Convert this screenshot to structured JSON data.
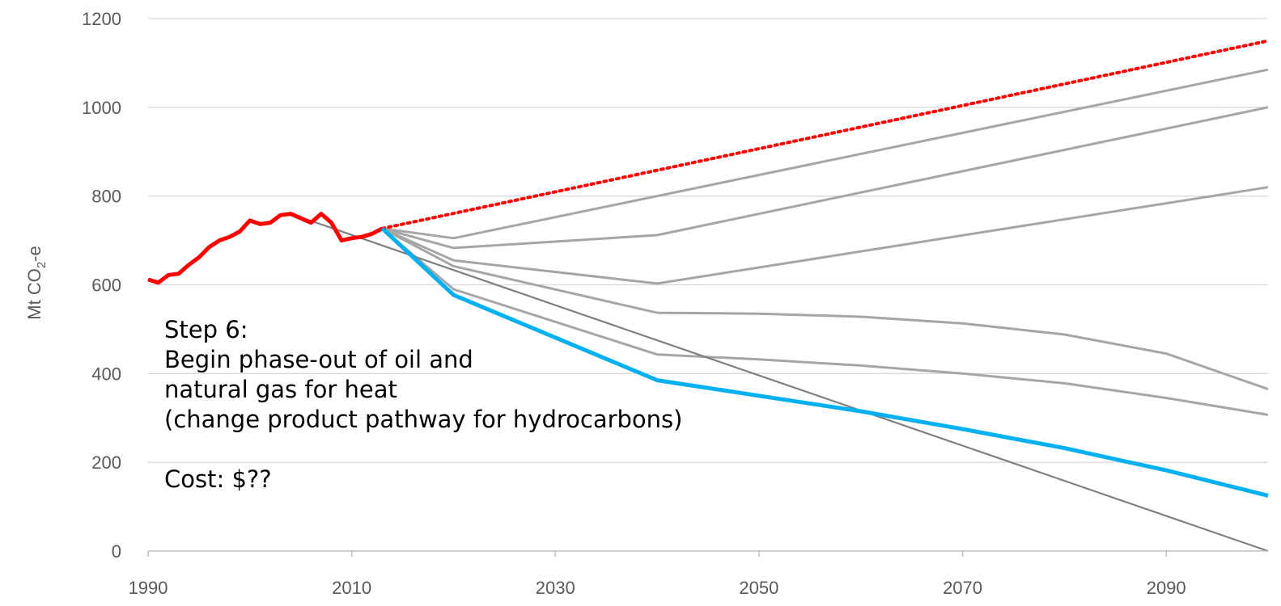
{
  "chart_data": {
    "type": "line",
    "title": "",
    "xlabel": "",
    "ylabel": "Mt CO2-e",
    "ylabel_parts": {
      "main": "Mt CO",
      "sub": "2",
      "suffix": "-e"
    },
    "xlim": [
      1990,
      2100
    ],
    "ylim": [
      0,
      1200
    ],
    "x_ticks": [
      "1990",
      "2010",
      "2030",
      "2050",
      "2070",
      "2090"
    ],
    "y_ticks": [
      "0",
      "200",
      "400",
      "600",
      "800",
      "1000",
      "1200"
    ],
    "grid": {
      "horizontal": true,
      "vertical": false
    },
    "legend": "none",
    "colors": {
      "historical": "#ff0000",
      "business_as_usual": "#ff0000",
      "scenario": "#a6a6a6",
      "target": "#7f7f7f",
      "highlight": "#00b0f0",
      "grid": "#d9d9d9",
      "axis": "#bfbfbf"
    },
    "series": [
      {
        "role": "historical",
        "style": "solid",
        "x": [
          1990,
          1991,
          1992,
          1993,
          1994,
          1995,
          1996,
          1997,
          1998,
          1999,
          2000,
          2001,
          2002,
          2003,
          2004,
          2005,
          2006,
          2007,
          2008,
          2009,
          2010,
          2011,
          2012,
          2013
        ],
        "y": [
          612,
          605,
          622,
          625,
          645,
          662,
          685,
          700,
          708,
          720,
          745,
          737,
          740,
          757,
          760,
          750,
          740,
          760,
          740,
          700,
          705,
          708,
          715,
          727
        ]
      },
      {
        "role": "business_as_usual",
        "style": "dotted",
        "x": [
          2013,
          2100
        ],
        "y": [
          727,
          1150
        ]
      },
      {
        "role": "scenario",
        "style": "solid",
        "x": [
          2013,
          2020,
          2100
        ],
        "y": [
          727,
          705,
          1085
        ]
      },
      {
        "role": "scenario",
        "style": "solid",
        "x": [
          2013,
          2020,
          2040,
          2100
        ],
        "y": [
          727,
          683,
          712,
          1000
        ]
      },
      {
        "role": "scenario",
        "style": "solid",
        "x": [
          2013,
          2020,
          2040,
          2100
        ],
        "y": [
          727,
          655,
          603,
          820
        ]
      },
      {
        "role": "scenario",
        "style": "solid",
        "x": [
          2013,
          2020,
          2040,
          2050,
          2060,
          2070,
          2080,
          2090,
          2100
        ],
        "y": [
          727,
          642,
          537,
          535,
          528,
          513,
          488,
          445,
          365
        ]
      },
      {
        "role": "scenario",
        "style": "solid",
        "x": [
          2013,
          2020,
          2040,
          2050,
          2060,
          2070,
          2080,
          2090,
          2100
        ],
        "y": [
          727,
          590,
          443,
          432,
          418,
          400,
          378,
          345,
          307
        ]
      },
      {
        "role": "target",
        "style": "solid",
        "x": [
          2005,
          2100
        ],
        "y": [
          752,
          0
        ]
      },
      {
        "role": "highlight",
        "style": "solid",
        "x": [
          2013,
          2020,
          2040,
          2050,
          2060,
          2070,
          2080,
          2090,
          2100
        ],
        "y": [
          727,
          577,
          385,
          350,
          315,
          275,
          232,
          182,
          125
        ]
      }
    ]
  },
  "annotation": {
    "line1": "Step 6:",
    "line2": "Begin phase-out of oil and",
    "line3": "natural gas for heat",
    "line4": "(change product pathway for hydrocarbons)",
    "line5": "Cost:  $??"
  }
}
